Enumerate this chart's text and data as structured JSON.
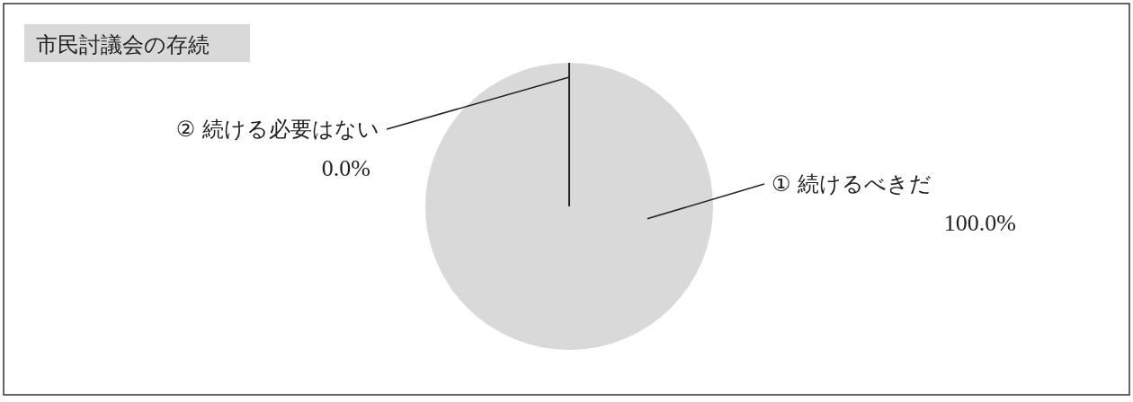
{
  "chart_data": {
    "type": "pie",
    "title": "市民討議会の存続",
    "categories": [
      "① 続けるべきだ",
      "② 続ける必要はない"
    ],
    "values": [
      100,
      0
    ],
    "value_labels": [
      "100.0%",
      "0.0%"
    ],
    "colors": [
      "#d9d9d9",
      "#d9d9d9"
    ]
  }
}
